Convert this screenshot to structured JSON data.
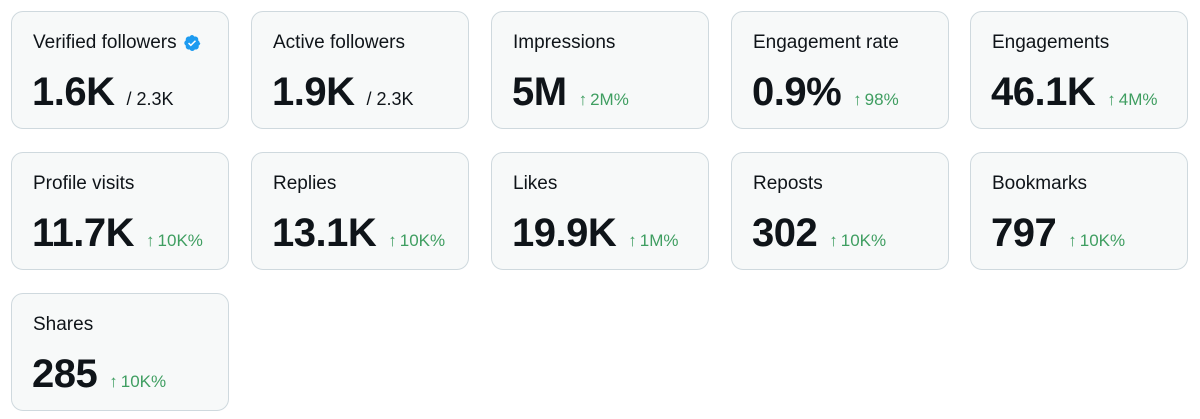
{
  "colors": {
    "card_background": "#f7f9f9",
    "card_border": "#cfd9de",
    "text_primary": "#0f1419",
    "positive_change": "#3f9e61",
    "verified_badge": "#1d9bf0"
  },
  "cards": [
    {
      "label": "Verified followers",
      "value": "1.6K",
      "total": "/ 2.3K",
      "icon": "verified-badge-icon"
    },
    {
      "label": "Active followers",
      "value": "1.9K",
      "total": "/ 2.3K"
    },
    {
      "label": "Impressions",
      "value": "5M",
      "change": "2M%",
      "change_icon": "arrow-up-icon"
    },
    {
      "label": "Engagement rate",
      "value": "0.9%",
      "change": "98%",
      "change_icon": "arrow-up-icon"
    },
    {
      "label": "Engagements",
      "value": "46.1K",
      "change": "4M%",
      "change_icon": "arrow-up-icon"
    },
    {
      "label": "Profile visits",
      "value": "11.7K",
      "change": "10K%",
      "change_icon": "arrow-up-icon"
    },
    {
      "label": "Replies",
      "value": "13.1K",
      "change": "10K%",
      "change_icon": "arrow-up-icon"
    },
    {
      "label": "Likes",
      "value": "19.9K",
      "change": "1M%",
      "change_icon": "arrow-up-icon"
    },
    {
      "label": "Reposts",
      "value": "302",
      "change": "10K%",
      "change_icon": "arrow-up-icon"
    },
    {
      "label": "Bookmarks",
      "value": "797",
      "change": "10K%",
      "change_icon": "arrow-up-icon"
    },
    {
      "label": "Shares",
      "value": "285",
      "change": "10K%",
      "change_icon": "arrow-up-icon"
    }
  ]
}
